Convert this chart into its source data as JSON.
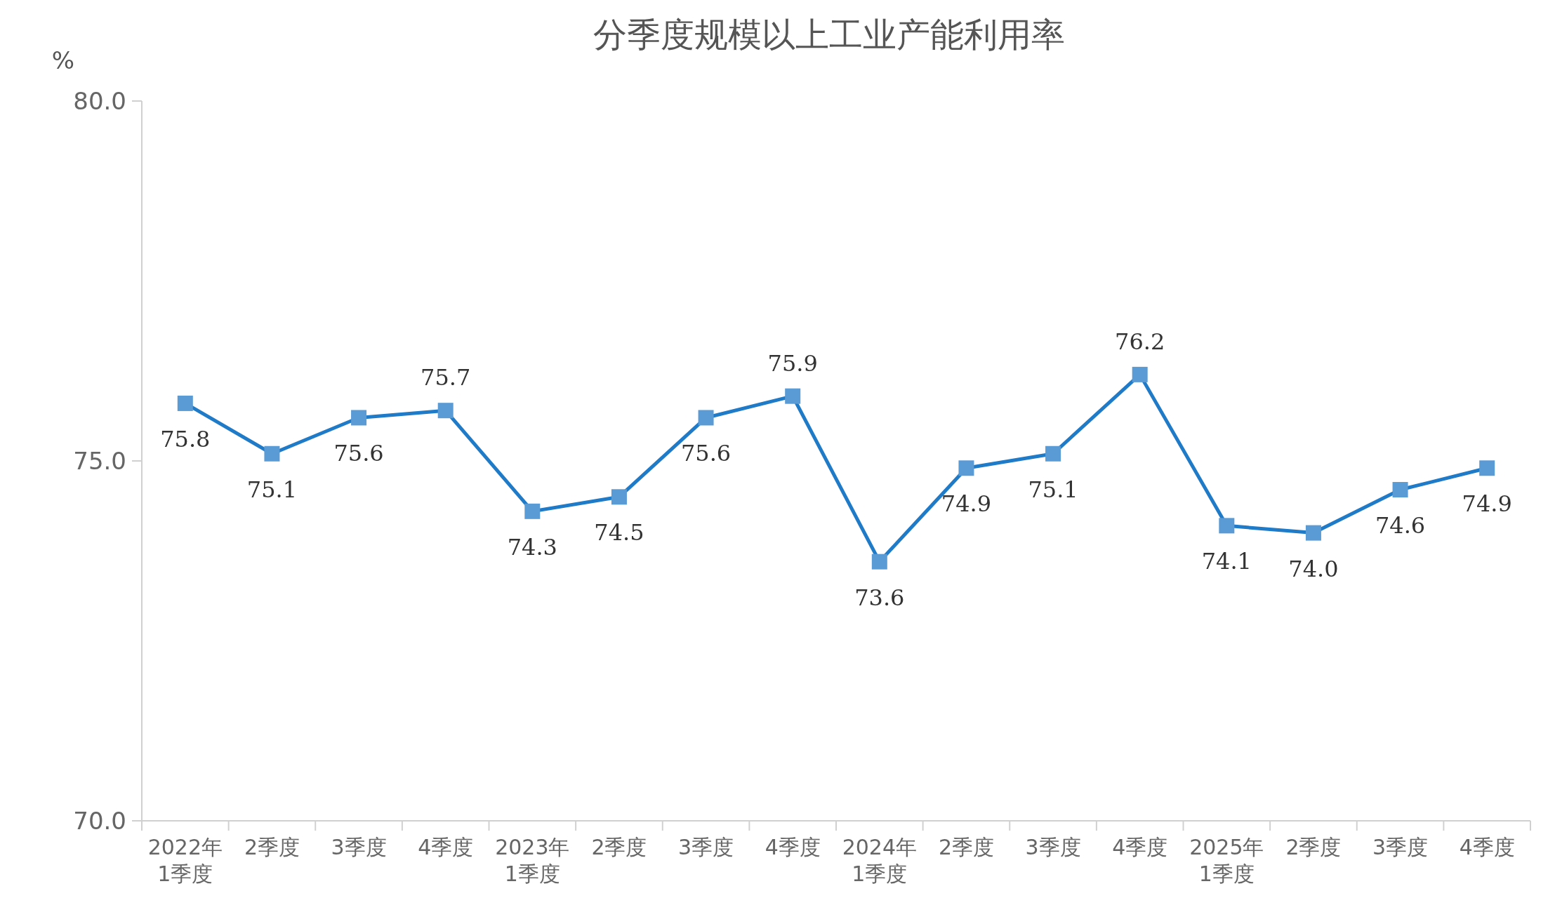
{
  "chart_data": {
    "type": "line",
    "title": "分季度规模以上工业产能利用率",
    "ylabel": "%",
    "categories": [
      "2022年\n1季度",
      "2季度",
      "3季度",
      "4季度",
      "2023年\n1季度",
      "2季度",
      "3季度",
      "4季度",
      "2024年\n1季度",
      "2季度",
      "3季度",
      "4季度",
      "2025年\n1季度",
      "2季度",
      "3季度",
      "4季度"
    ],
    "series": [
      {
        "color": "#1f7ac8",
        "values": [
          75.8,
          75.1,
          75.6,
          75.7,
          74.3,
          74.5,
          75.6,
          75.9,
          73.6,
          74.9,
          75.1,
          76.2,
          74.1,
          74.0,
          74.6,
          74.9
        ],
        "value_labels": [
          "75.8",
          "75.1",
          "75.6",
          "75.7",
          "74.3",
          "74.5",
          "75.6",
          "75.9",
          "73.6",
          "74.9",
          "75.1",
          "76.2",
          "74.1",
          "74.0",
          "74.6",
          "74.9"
        ]
      }
    ],
    "ylim": [
      70,
      80
    ],
    "yticks": [
      {
        "value": 70,
        "label": "70.0"
      },
      {
        "value": 75,
        "label": "75.0"
      },
      {
        "value": 80,
        "label": "80.0"
      }
    ],
    "marker": "square",
    "grid": false
  }
}
